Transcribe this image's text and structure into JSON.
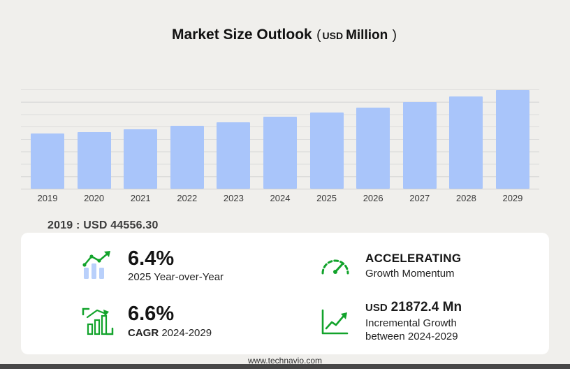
{
  "header": {
    "title": "Market Size Outlook",
    "unit_open": "(",
    "unit_currency": "USD",
    "unit_label": "Million",
    "unit_close": ")"
  },
  "chart_data": {
    "type": "bar",
    "title": "Market Size Outlook (USD Million)",
    "unit": "USD Million",
    "categories": [
      "2019",
      "2020",
      "2021",
      "2022",
      "2023",
      "2024",
      "2025",
      "2026",
      "2027",
      "2028",
      "2029"
    ],
    "values": [
      44556.3,
      45980,
      48210,
      50890,
      53980,
      58171.6,
      61894.6,
      65940,
      70310,
      75010,
      80044
    ],
    "base_year_note": "2019 : USD  44556.30",
    "bar_color": "#a9c5fa",
    "ylim": [
      0,
      80500
    ],
    "grid": true,
    "legend": false
  },
  "stats": {
    "yoy": {
      "value": "6.4%",
      "label": "2025 Year-over-Year",
      "icon": "bar-chart-growth-icon"
    },
    "momentum": {
      "value": "ACCELERATING",
      "label": "Growth Momentum",
      "icon": "speedometer-icon"
    },
    "cagr": {
      "value": "6.6%",
      "label_bold": "CAGR",
      "label_rest": " 2024-2029",
      "icon": "cagr-chart-icon"
    },
    "incremental": {
      "value_prefix": "USD",
      "value": "21872.4 Mn",
      "label_line1": "Incremental Growth",
      "label_line2": "between 2024-2029",
      "icon": "incremental-growth-icon"
    }
  },
  "footer": {
    "url": "www.technavio.com"
  },
  "colors": {
    "accent_green": "#12a32b",
    "bar_blue": "#a9c5fa",
    "icon_blue": "#b9d0fb",
    "background": "#f0efec",
    "footer_bar": "#474747"
  }
}
